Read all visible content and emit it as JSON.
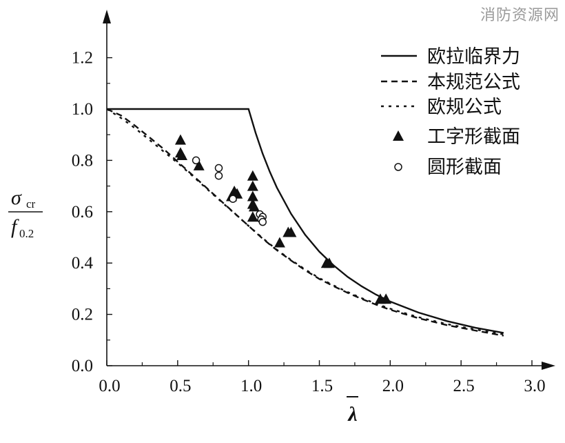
{
  "watermark": "消防资源网",
  "chart_data": {
    "type": "line",
    "xlabel": "λ",
    "xlabel_overbar": true,
    "ylabel_numerator": "σ",
    "ylabel_numerator_sub": "cr",
    "ylabel_denominator": "f",
    "ylabel_denominator_sub": "0.2",
    "xlim": [
      0,
      3.0
    ],
    "ylim": [
      0,
      1.3
    ],
    "x_ticks": [
      "0.0",
      "0.5",
      "1.0",
      "1.5",
      "2.0",
      "2.5",
      "3.0"
    ],
    "y_ticks": [
      "0.0",
      "0.2",
      "0.4",
      "0.6",
      "0.8",
      "1.0",
      "1.2"
    ],
    "x_tick_values": [
      0,
      0.5,
      1.0,
      1.5,
      2.0,
      2.5,
      3.0
    ],
    "y_tick_values": [
      0,
      0.2,
      0.4,
      0.6,
      0.8,
      1.0,
      1.2
    ],
    "grid": false,
    "legend_position": "top-right",
    "series": [
      {
        "name": "欧拉临界力",
        "style": "solid",
        "x": [
          0,
          1.0,
          1.05,
          1.1,
          1.15,
          1.2,
          1.3,
          1.4,
          1.5,
          1.6,
          1.7,
          1.8,
          1.9,
          2.0,
          2.2,
          2.4,
          2.6,
          2.8
        ],
        "y": [
          1.0,
          1.0,
          0.907,
          0.826,
          0.756,
          0.694,
          0.592,
          0.51,
          0.444,
          0.391,
          0.346,
          0.309,
          0.277,
          0.25,
          0.207,
          0.174,
          0.148,
          0.128
        ]
      },
      {
        "name": "本规范公式",
        "style": "dashed",
        "x": [
          0,
          0.1,
          0.2,
          0.3,
          0.4,
          0.5,
          0.6,
          0.7,
          0.8,
          0.9,
          1.0,
          1.1,
          1.2,
          1.3,
          1.4,
          1.5,
          1.6,
          1.7,
          1.8,
          1.9,
          2.0,
          2.2,
          2.4,
          2.6,
          2.8
        ],
        "y": [
          1.0,
          0.975,
          0.935,
          0.89,
          0.845,
          0.795,
          0.745,
          0.695,
          0.645,
          0.595,
          0.545,
          0.495,
          0.45,
          0.41,
          0.372,
          0.338,
          0.31,
          0.284,
          0.26,
          0.238,
          0.218,
          0.185,
          0.158,
          0.137,
          0.117
        ]
      },
      {
        "name": "欧规公式",
        "style": "dotted",
        "x": [
          0,
          0.1,
          0.2,
          0.3,
          0.4,
          0.5,
          0.6,
          0.7,
          0.8,
          0.9,
          1.0,
          1.1,
          1.2,
          1.3,
          1.4,
          1.5,
          1.6,
          1.7,
          1.8,
          1.9,
          2.0,
          2.2,
          2.4,
          2.6,
          2.8
        ],
        "y": [
          1.0,
          0.965,
          0.925,
          0.88,
          0.835,
          0.79,
          0.742,
          0.692,
          0.643,
          0.594,
          0.545,
          0.497,
          0.452,
          0.412,
          0.375,
          0.341,
          0.313,
          0.287,
          0.263,
          0.242,
          0.222,
          0.189,
          0.162,
          0.141,
          0.122
        ]
      }
    ],
    "scatter_series": [
      {
        "name": "工字形截面",
        "marker": "filled-triangle",
        "points": [
          [
            0.52,
            0.88
          ],
          [
            0.52,
            0.83
          ],
          [
            0.53,
            0.82
          ],
          [
            0.65,
            0.78
          ],
          [
            0.88,
            0.66
          ],
          [
            0.9,
            0.68
          ],
          [
            0.92,
            0.67
          ],
          [
            1.03,
            0.74
          ],
          [
            1.03,
            0.7
          ],
          [
            1.03,
            0.66
          ],
          [
            1.03,
            0.63
          ],
          [
            1.04,
            0.62
          ],
          [
            1.03,
            0.58
          ],
          [
            1.22,
            0.48
          ],
          [
            1.28,
            0.52
          ],
          [
            1.3,
            0.52
          ],
          [
            1.55,
            0.4
          ],
          [
            1.57,
            0.4
          ],
          [
            1.93,
            0.26
          ],
          [
            1.97,
            0.26
          ]
        ]
      },
      {
        "name": "圆形截面",
        "marker": "open-circle",
        "points": [
          [
            0.63,
            0.8
          ],
          [
            0.79,
            0.77
          ],
          [
            0.79,
            0.74
          ],
          [
            0.89,
            0.65
          ],
          [
            1.08,
            0.59
          ],
          [
            1.1,
            0.58
          ],
          [
            1.09,
            0.57
          ],
          [
            1.1,
            0.56
          ]
        ]
      }
    ]
  }
}
